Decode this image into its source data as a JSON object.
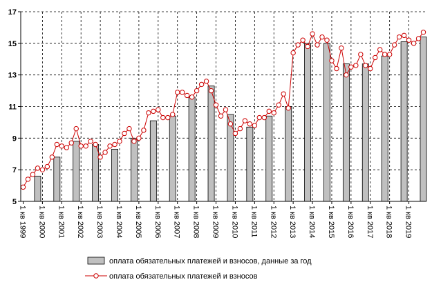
{
  "chart_data": {
    "type": "combo",
    "categories": [
      "1 кв 1999",
      null,
      null,
      null,
      "1 кв 2000",
      null,
      null,
      null,
      "1 кв 2001",
      null,
      null,
      null,
      "1 кв 2002",
      null,
      null,
      null,
      "1 кв 2003",
      null,
      null,
      null,
      "1 кв 2004",
      null,
      null,
      null,
      "1 кв 2005",
      null,
      null,
      null,
      "1 кв 2006",
      null,
      null,
      null,
      "1 кв 2007",
      null,
      null,
      null,
      "1 кв 2008",
      null,
      null,
      null,
      "1 кв 2009",
      null,
      null,
      null,
      "1 кв 2010",
      null,
      null,
      null,
      "1 кв 2011",
      null,
      null,
      null,
      "1 кв 2012",
      null,
      null,
      null,
      "1 кв 2013",
      null,
      null,
      null,
      "1 кв 2014",
      null,
      null,
      null,
      "1 кв 2015",
      null,
      null,
      null,
      "1 кв 2016",
      null,
      null,
      null,
      "1 кв 2017",
      null,
      null,
      null,
      "1 кв 2018",
      null,
      null,
      null,
      "1 кв 2019",
      null,
      null,
      null
    ],
    "series": [
      {
        "name": "оплата обязательных платежей и взносов, данные за год",
        "type": "bar",
        "color": "#c0c0c0",
        "values": [
          null,
          null,
          null,
          6.6,
          null,
          null,
          null,
          7.8,
          null,
          null,
          null,
          8.8,
          null,
          null,
          null,
          8.6,
          null,
          null,
          null,
          8.3,
          null,
          null,
          null,
          9.0,
          null,
          null,
          null,
          10.1,
          null,
          null,
          null,
          10.4,
          null,
          null,
          null,
          11.6,
          null,
          null,
          null,
          12.3,
          null,
          null,
          null,
          10.5,
          null,
          null,
          null,
          9.7,
          null,
          null,
          null,
          10.4,
          null,
          null,
          null,
          11.0,
          null,
          null,
          null,
          15.0,
          null,
          null,
          null,
          15.0,
          null,
          null,
          null,
          13.7,
          null,
          null,
          null,
          13.7,
          null,
          null,
          null,
          14.2,
          null,
          null,
          null,
          15.1,
          null,
          null,
          null,
          15.4
        ]
      },
      {
        "name": "оплата обязательных платежей и взносов",
        "type": "line",
        "color": "#cc0000",
        "values": [
          5.9,
          6.4,
          6.7,
          7.1,
          7.0,
          7.2,
          7.8,
          8.6,
          8.5,
          8.4,
          8.7,
          9.6,
          8.5,
          8.5,
          8.8,
          8.6,
          7.8,
          8.1,
          8.5,
          8.6,
          8.8,
          9.3,
          9.6,
          8.8,
          9.0,
          9.5,
          10.6,
          10.7,
          10.8,
          10.3,
          10.3,
          10.5,
          11.9,
          11.9,
          11.7,
          11.6,
          12.0,
          12.4,
          12.6,
          12.0,
          11.1,
          10.4,
          10.8,
          9.9,
          9.3,
          9.6,
          10.1,
          9.9,
          9.8,
          10.3,
          10.3,
          10.7,
          10.6,
          11.1,
          11.8,
          10.9,
          14.4,
          14.9,
          15.2,
          14.8,
          15.6,
          14.9,
          15.4,
          15.2,
          13.9,
          13.4,
          14.7,
          13.0,
          13.5,
          13.6,
          14.3,
          13.6,
          13.4,
          14.1,
          14.6,
          14.3,
          14.3,
          14.9,
          15.4,
          15.5,
          15.2,
          15.0,
          15.3,
          15.7
        ]
      }
    ],
    "ylim": [
      5,
      17
    ],
    "yticks": [
      5,
      7,
      9,
      11,
      13,
      15,
      17
    ],
    "grid": true
  }
}
